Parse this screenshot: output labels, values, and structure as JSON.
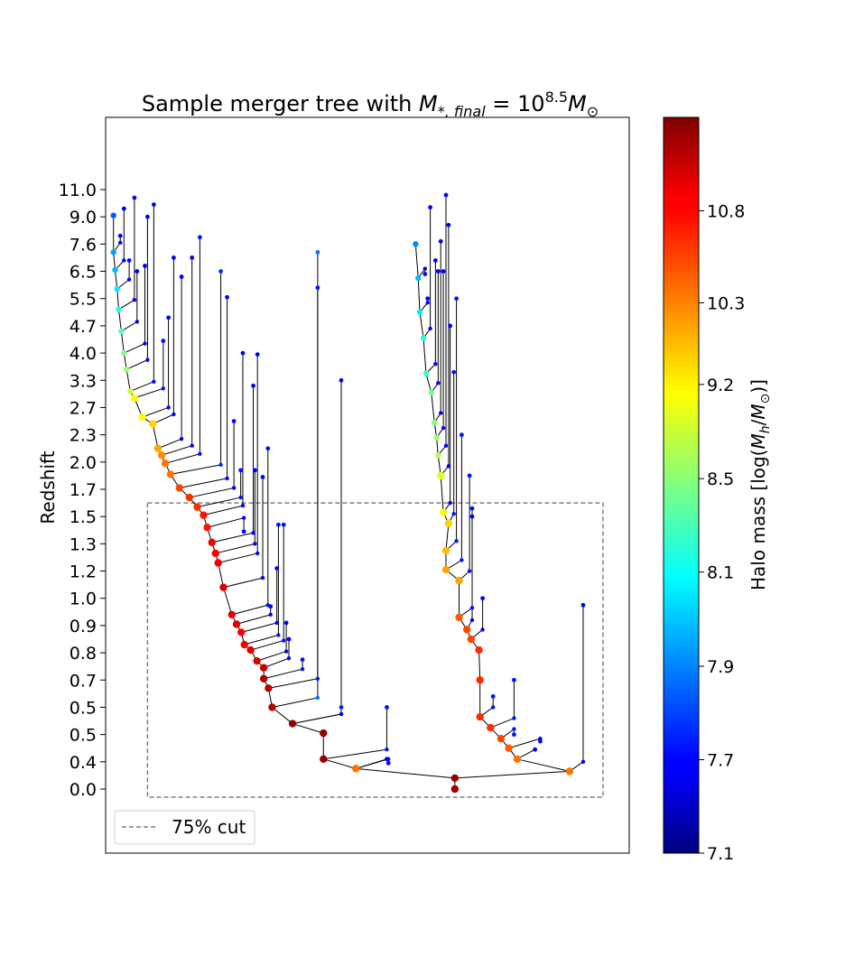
{
  "chart_data": {
    "type": "scatter",
    "title_prefix": "Sample merger tree with ",
    "title_math": "M",
    "title_sub": "*, final",
    "title_eq": " = 10",
    "title_exp": "8.5",
    "title_math2": "M",
    "title_sub2": "⊙",
    "ylabel": "Redshift",
    "yticks": [
      "11.0",
      "9.0",
      "7.6",
      "6.5",
      "5.5",
      "4.7",
      "4.0",
      "3.3",
      "2.7",
      "2.3",
      "2.0",
      "1.7",
      "1.5",
      "1.3",
      "1.2",
      "1.0",
      "0.9",
      "0.8",
      "0.7",
      "0.5",
      "0.5",
      "0.4",
      "0.0"
    ],
    "colorbar": {
      "label_prefix": "Halo mass [log(",
      "label_math": "M",
      "label_sub": "h",
      "label_mid": "/",
      "label_math2": "M",
      "label_sub2": "⊙",
      "label_suffix": ")]",
      "min": 7.1,
      "max": 11.3,
      "colormap": "jet",
      "ticks": [
        {
          "label": "10.8",
          "frac": 0.873
        },
        {
          "label": "10.3",
          "frac": 0.748
        },
        {
          "label": "9.2",
          "frac": 0.637
        },
        {
          "label": "8.5",
          "frac": 0.509
        },
        {
          "label": "8.1",
          "frac": 0.382
        },
        {
          "label": "7.9",
          "frac": 0.254
        },
        {
          "label": "7.7",
          "frac": 0.127
        },
        {
          "label": "7.1",
          "frac": 0.0
        }
      ]
    },
    "legend": {
      "label": "75% cut",
      "placement": "lower-left",
      "style": "dashed",
      "color": "#808080"
    },
    "cut_box": {
      "snap_top": 11.5,
      "snap_bottom": 22.3,
      "x_left": 0.08,
      "x_right": 0.95
    },
    "snap_labels": "snapshot index 0 (top, z=11.0) to 22 (bottom, z=0.0)",
    "nodes": [
      {
        "id": "root",
        "x": 0.667,
        "s": 22,
        "m": 11.2
      },
      {
        "id": "r1",
        "x": 0.667,
        "s": 21.6,
        "m": 11.2
      },
      {
        "id": "L1",
        "x": 0.478,
        "s": 21.25,
        "m": 10.3
      },
      {
        "id": "L2",
        "x": 0.416,
        "s": 20.9,
        "m": 11.2
      },
      {
        "id": "L3",
        "x": 0.416,
        "s": 19.95,
        "m": 11.2
      },
      {
        "id": "L4",
        "x": 0.357,
        "s": 19.6,
        "m": 11.2
      },
      {
        "id": "L5",
        "x": 0.318,
        "s": 19.0,
        "m": 11.1
      },
      {
        "id": "L6",
        "x": 0.311,
        "s": 18.3,
        "m": 11.1
      },
      {
        "id": "L7",
        "x": 0.302,
        "s": 17.95,
        "m": 11.1
      },
      {
        "id": "L8",
        "x": 0.302,
        "s": 17.55,
        "m": 11.0
      },
      {
        "id": "L9",
        "x": 0.289,
        "s": 17.3,
        "m": 10.9
      },
      {
        "id": "L10",
        "x": 0.277,
        "s": 16.9,
        "m": 10.9
      },
      {
        "id": "L11",
        "x": 0.265,
        "s": 16.7,
        "m": 10.8
      },
      {
        "id": "L12",
        "x": 0.259,
        "s": 16.25,
        "m": 10.8
      },
      {
        "id": "L13",
        "x": 0.25,
        "s": 15.95,
        "m": 10.9
      },
      {
        "id": "L14",
        "x": 0.241,
        "s": 15.6,
        "m": 10.9
      },
      {
        "id": "L15",
        "x": 0.225,
        "s": 14.6,
        "m": 10.9
      },
      {
        "id": "L16",
        "x": 0.215,
        "s": 13.7,
        "m": 10.8
      },
      {
        "id": "L17",
        "x": 0.21,
        "s": 13.35,
        "m": 10.8
      },
      {
        "id": "L18",
        "x": 0.203,
        "s": 12.95,
        "m": 10.8
      },
      {
        "id": "L19",
        "x": 0.194,
        "s": 12.4,
        "m": 10.7
      },
      {
        "id": "L20",
        "x": 0.187,
        "s": 11.95,
        "m": 10.7
      },
      {
        "id": "L21",
        "x": 0.175,
        "s": 11.65,
        "m": 10.6
      },
      {
        "id": "L22",
        "x": 0.16,
        "s": 11.3,
        "m": 10.6
      },
      {
        "id": "L23",
        "x": 0.141,
        "s": 10.95,
        "m": 10.5
      },
      {
        "id": "L24",
        "x": 0.124,
        "s": 10.45,
        "m": 10.3
      },
      {
        "id": "L25",
        "x": 0.114,
        "s": 10.05,
        "m": 10.3
      },
      {
        "id": "L26",
        "x": 0.107,
        "s": 9.75,
        "m": 10.2
      },
      {
        "id": "L27",
        "x": 0.1,
        "s": 9.5,
        "m": 10.1
      },
      {
        "id": "L28",
        "x": 0.09,
        "s": 8.6,
        "m": 9.9
      },
      {
        "id": "L29",
        "x": 0.07,
        "s": 8.35,
        "m": 9.7
      },
      {
        "id": "L30",
        "x": 0.055,
        "s": 7.65,
        "m": 9.7
      },
      {
        "id": "L31",
        "x": 0.047,
        "s": 7.4,
        "m": 9.5
      },
      {
        "id": "L32",
        "x": 0.04,
        "s": 6.6,
        "m": 9.3
      },
      {
        "id": "L33",
        "x": 0.035,
        "s": 6.0,
        "m": 9.2
      },
      {
        "id": "L34",
        "x": 0.03,
        "s": 5.2,
        "m": 9.0
      },
      {
        "id": "L35",
        "x": 0.025,
        "s": 4.4,
        "m": 8.8
      },
      {
        "id": "L36",
        "x": 0.022,
        "s": 3.65,
        "m": 8.6
      },
      {
        "id": "L37",
        "x": 0.018,
        "s": 2.95,
        "m": 8.4
      },
      {
        "id": "L38",
        "x": 0.015,
        "s": 2.3,
        "m": 8.3
      },
      {
        "id": "L39",
        "x": 0.015,
        "s": 0.95,
        "m": 8.0
      },
      {
        "id": "R1",
        "x": 0.886,
        "s": 21.35,
        "m": 10.3
      },
      {
        "id": "R2",
        "x": 0.786,
        "s": 20.9,
        "m": 10.3
      },
      {
        "id": "R3",
        "x": 0.77,
        "s": 20.5,
        "m": 10.4
      },
      {
        "id": "R4",
        "x": 0.755,
        "s": 20.15,
        "m": 10.5
      },
      {
        "id": "R5",
        "x": 0.735,
        "s": 19.75,
        "m": 10.6
      },
      {
        "id": "R6",
        "x": 0.715,
        "s": 19.35,
        "m": 10.6
      },
      {
        "id": "R7",
        "x": 0.715,
        "s": 18.0,
        "m": 10.6
      },
      {
        "id": "R8",
        "x": 0.713,
        "s": 16.9,
        "m": 10.6
      },
      {
        "id": "R9",
        "x": 0.698,
        "s": 16.5,
        "m": 10.5
      },
      {
        "id": "R10",
        "x": 0.69,
        "s": 16.15,
        "m": 10.5
      },
      {
        "id": "R11",
        "x": 0.675,
        "s": 15.7,
        "m": 10.4
      },
      {
        "id": "R12",
        "x": 0.675,
        "s": 14.35,
        "m": 10.1
      },
      {
        "id": "R13",
        "x": 0.65,
        "s": 13.95,
        "m": 10.1
      },
      {
        "id": "R14",
        "x": 0.65,
        "s": 13.25,
        "m": 10.0
      },
      {
        "id": "R15",
        "x": 0.655,
        "s": 12.25,
        "m": 9.9
      },
      {
        "id": "R16",
        "x": 0.645,
        "s": 11.85,
        "m": 9.7
      },
      {
        "id": "R17",
        "x": 0.64,
        "s": 10.5,
        "m": 9.6
      },
      {
        "id": "R18",
        "x": 0.635,
        "s": 9.75,
        "m": 9.4
      },
      {
        "id": "R19",
        "x": 0.632,
        "s": 9.1,
        "m": 9.3
      },
      {
        "id": "R20",
        "x": 0.628,
        "s": 8.55,
        "m": 9.2
      },
      {
        "id": "R21",
        "x": 0.622,
        "s": 7.45,
        "m": 9.1
      },
      {
        "id": "R22",
        "x": 0.612,
        "s": 6.75,
        "m": 8.9
      },
      {
        "id": "R23",
        "x": 0.607,
        "s": 5.45,
        "m": 8.8
      },
      {
        "id": "R24",
        "x": 0.6,
        "s": 4.5,
        "m": 8.6
      },
      {
        "id": "R25",
        "x": 0.597,
        "s": 3.25,
        "m": 8.4
      },
      {
        "id": "R26",
        "x": 0.592,
        "s": 2.0,
        "m": 8.2
      }
    ],
    "edges": [
      [
        "root",
        "r1"
      ],
      [
        "r1",
        "L1"
      ],
      [
        "r1",
        "R1"
      ],
      [
        "L1",
        "L2"
      ],
      [
        "L2",
        "L3"
      ],
      [
        "L3",
        "L4"
      ],
      [
        "L4",
        "L5"
      ],
      [
        "L5",
        "L6"
      ],
      [
        "L6",
        "L7"
      ],
      [
        "L7",
        "L8"
      ],
      [
        "L8",
        "L9"
      ],
      [
        "L9",
        "L10"
      ],
      [
        "L10",
        "L11"
      ],
      [
        "L11",
        "L12"
      ],
      [
        "L12",
        "L13"
      ],
      [
        "L13",
        "L14"
      ],
      [
        "L14",
        "L15"
      ],
      [
        "L15",
        "L16"
      ],
      [
        "L16",
        "L17"
      ],
      [
        "L17",
        "L18"
      ],
      [
        "L18",
        "L19"
      ],
      [
        "L19",
        "L20"
      ],
      [
        "L20",
        "L21"
      ],
      [
        "L21",
        "L22"
      ],
      [
        "L22",
        "L23"
      ],
      [
        "L23",
        "L24"
      ],
      [
        "L24",
        "L25"
      ],
      [
        "L25",
        "L26"
      ],
      [
        "L26",
        "L27"
      ],
      [
        "L27",
        "L28"
      ],
      [
        "L28",
        "L29"
      ],
      [
        "L29",
        "L30"
      ],
      [
        "L30",
        "L31"
      ],
      [
        "L31",
        "L32"
      ],
      [
        "L32",
        "L33"
      ],
      [
        "L33",
        "L34"
      ],
      [
        "L34",
        "L35"
      ],
      [
        "L35",
        "L36"
      ],
      [
        "L36",
        "L37"
      ],
      [
        "L37",
        "L38"
      ],
      [
        "L38",
        "L39"
      ],
      [
        "R1",
        "R2"
      ],
      [
        "R2",
        "R3"
      ],
      [
        "R3",
        "R4"
      ],
      [
        "R4",
        "R5"
      ],
      [
        "R5",
        "R6"
      ],
      [
        "R6",
        "R7"
      ],
      [
        "R7",
        "R8"
      ],
      [
        "R8",
        "R9"
      ],
      [
        "R9",
        "R10"
      ],
      [
        "R10",
        "R11"
      ],
      [
        "R11",
        "R12"
      ],
      [
        "R12",
        "R13"
      ],
      [
        "R13",
        "R14"
      ],
      [
        "R14",
        "R15"
      ],
      [
        "R15",
        "R16"
      ],
      [
        "R16",
        "R17"
      ],
      [
        "R17",
        "R18"
      ],
      [
        "R18",
        "R19"
      ],
      [
        "R19",
        "R20"
      ],
      [
        "R20",
        "R21"
      ],
      [
        "R21",
        "R22"
      ],
      [
        "R22",
        "R23"
      ],
      [
        "R23",
        "R24"
      ],
      [
        "R24",
        "R25"
      ],
      [
        "R25",
        "R26"
      ]
    ],
    "branches": [
      {
        "from": "L1",
        "x": 0.537,
        "s_top": 20.9,
        "m": 7.6
      },
      {
        "from": "L1",
        "x": 0.54,
        "s_top": 21.05,
        "m": 7.6
      },
      {
        "from": "L2",
        "x": 0.537,
        "s_top": 19.0,
        "m": 7.7
      },
      {
        "from": "L4",
        "x": 0.45,
        "s_top": 19.0,
        "m": 7.8
      },
      {
        "from": "L4",
        "x": 0.45,
        "s_top": 7.0,
        "m": 7.6
      },
      {
        "from": "L5",
        "x": 0.405,
        "s_top": 2.3,
        "m": 8.1
      },
      {
        "from": "L6",
        "x": 0.405,
        "s_top": 3.6,
        "m": 7.7
      },
      {
        "from": "L7",
        "x": 0.376,
        "s_top": 17.25,
        "m": 7.7
      },
      {
        "from": "L8",
        "x": 0.35,
        "s_top": 16.5,
        "m": 7.6
      },
      {
        "from": "L9",
        "x": 0.345,
        "s_top": 15.9,
        "m": 7.6
      },
      {
        "from": "L10",
        "x": 0.34,
        "s_top": 12.3,
        "m": 7.7
      },
      {
        "from": "L11",
        "x": 0.33,
        "s_top": 12.3,
        "m": 7.7
      },
      {
        "from": "L12",
        "x": 0.327,
        "s_top": 13.9,
        "m": 7.6
      },
      {
        "from": "L13",
        "x": 0.315,
        "s_top": 15.3,
        "m": 7.6
      },
      {
        "from": "L14",
        "x": 0.31,
        "s_top": 9.5,
        "m": 7.7
      },
      {
        "from": "L15",
        "x": 0.3,
        "s_top": 10.55,
        "m": 7.6
      },
      {
        "from": "L16",
        "x": 0.29,
        "s_top": 6.05,
        "m": 7.6
      },
      {
        "from": "L17",
        "x": 0.285,
        "s_top": 10.3,
        "m": 7.6
      },
      {
        "from": "L18",
        "x": 0.282,
        "s_top": 7.2,
        "m": 7.6
      },
      {
        "from": "L19",
        "x": 0.264,
        "s_top": 12.55,
        "m": 7.6
      },
      {
        "from": "L20",
        "x": 0.262,
        "s_top": 6.0,
        "m": 7.6
      },
      {
        "from": "L21",
        "x": 0.258,
        "s_top": 10.3,
        "m": 7.7
      },
      {
        "from": "L22",
        "x": 0.245,
        "s_top": 8.5,
        "m": 7.6
      },
      {
        "from": "L23",
        "x": 0.232,
        "s_top": 3.95,
        "m": 7.6
      },
      {
        "from": "L24",
        "x": 0.22,
        "s_top": 3.0,
        "m": 7.8
      },
      {
        "from": "L25",
        "x": 0.18,
        "s_top": 1.75,
        "m": 7.7
      },
      {
        "from": "L26",
        "x": 0.165,
        "s_top": 2.5,
        "m": 7.6
      },
      {
        "from": "L27",
        "x": 0.145,
        "s_top": 3.2,
        "m": 7.6
      },
      {
        "from": "L28",
        "x": 0.13,
        "s_top": 2.5,
        "m": 7.6
      },
      {
        "from": "L29",
        "x": 0.12,
        "s_top": 4.7,
        "m": 7.6
      },
      {
        "from": "L30",
        "x": 0.11,
        "s_top": 5.55,
        "m": 7.7
      },
      {
        "from": "L31",
        "x": 0.092,
        "s_top": 0.55,
        "m": 7.6
      },
      {
        "from": "L32",
        "x": 0.08,
        "s_top": 1.0,
        "m": 7.6
      },
      {
        "from": "L33",
        "x": 0.075,
        "s_top": 2.8,
        "m": 7.6
      },
      {
        "from": "L34",
        "x": 0.06,
        "s_top": 3.0,
        "m": 7.6
      },
      {
        "from": "L35",
        "x": 0.055,
        "s_top": 0.3,
        "m": 7.6
      },
      {
        "from": "L36",
        "x": 0.045,
        "s_top": 2.6,
        "m": 7.6
      },
      {
        "from": "L37",
        "x": 0.035,
        "s_top": 0.7,
        "m": 7.6
      },
      {
        "from": "L38",
        "x": 0.028,
        "s_top": 1.7,
        "m": 7.6
      },
      {
        "from": "R1",
        "x": 0.912,
        "s_top": 15.25,
        "m": 7.6
      },
      {
        "from": "R2",
        "x": 0.82,
        "s_top": 20.55,
        "m": 7.6
      },
      {
        "from": "R3",
        "x": 0.83,
        "s_top": 20.25,
        "m": 7.6
      },
      {
        "from": "R4",
        "x": 0.78,
        "s_top": 20.0,
        "m": 7.7
      },
      {
        "from": "R5",
        "x": 0.78,
        "s_top": 18.0,
        "m": 7.7
      },
      {
        "from": "R6",
        "x": 0.74,
        "s_top": 18.6,
        "m": 7.7
      },
      {
        "from": "R9",
        "x": 0.72,
        "s_top": 15.0,
        "m": 7.6
      },
      {
        "from": "R10",
        "x": 0.7,
        "s_top": 12.0,
        "m": 7.6
      },
      {
        "from": "R11",
        "x": 0.7,
        "s_top": 11.7,
        "m": 7.7
      },
      {
        "from": "R12",
        "x": 0.695,
        "s_top": 10.5,
        "m": 7.7
      },
      {
        "from": "R13",
        "x": 0.68,
        "s_top": 9.0,
        "m": 7.7
      },
      {
        "from": "R14",
        "x": 0.67,
        "s_top": 4.0,
        "m": 7.7
      },
      {
        "from": "R15",
        "x": 0.665,
        "s_top": 6.7,
        "m": 7.7
      },
      {
        "from": "R16",
        "x": 0.658,
        "s_top": 5.0,
        "m": 7.6
      },
      {
        "from": "R17",
        "x": 0.655,
        "s_top": 1.3,
        "m": 7.6
      },
      {
        "from": "R18",
        "x": 0.65,
        "s_top": 0.2,
        "m": 7.6
      },
      {
        "from": "R19",
        "x": 0.645,
        "s_top": 3.0,
        "m": 7.6
      },
      {
        "from": "R20",
        "x": 0.64,
        "s_top": 1.9,
        "m": 7.6
      },
      {
        "from": "R21",
        "x": 0.635,
        "s_top": 3.0,
        "m": 7.6
      },
      {
        "from": "R22",
        "x": 0.63,
        "s_top": 2.6,
        "m": 7.6
      },
      {
        "from": "R23",
        "x": 0.62,
        "s_top": 0.65,
        "m": 7.6
      },
      {
        "from": "R24",
        "x": 0.615,
        "s_top": 4.0,
        "m": 7.6
      },
      {
        "from": "R25",
        "x": 0.61,
        "s_top": 3.1,
        "m": 7.6
      }
    ]
  }
}
